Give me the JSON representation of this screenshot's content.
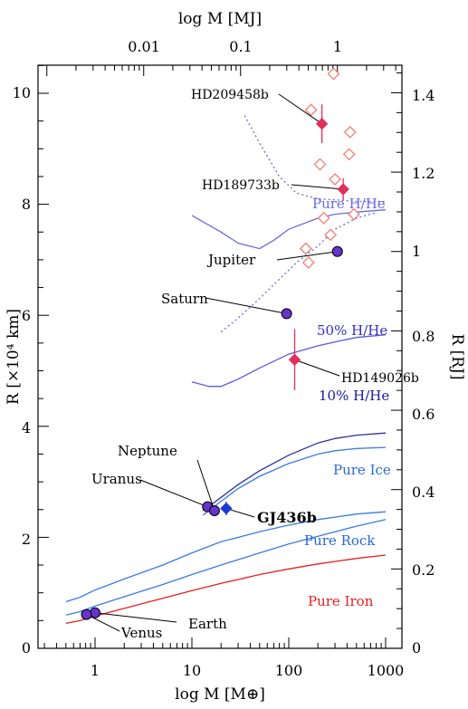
{
  "chart_data": {
    "type": "scatter",
    "title": "",
    "xlabel": "log M [M⊕]",
    "ylabel": "R [×10⁴ km]",
    "x2label": "log M [MJ]",
    "y2label": "R [RJ]",
    "xscale": "log",
    "xlim": [
      0.5,
      1400
    ],
    "ylim": [
      0,
      10.7
    ],
    "xticks": [
      "1",
      "10",
      "100",
      "1000"
    ],
    "yticks": [
      "0",
      "2",
      "4",
      "6",
      "8",
      "10"
    ],
    "x2ticks": [
      "0.01",
      "0.1",
      "1"
    ],
    "y2ticks": [
      "0",
      "0.2",
      "0.4",
      "0.6",
      "0.8",
      "1",
      "1.2",
      "1.4"
    ],
    "grid": false,
    "curves": [
      {
        "name": "Pure H/He",
        "color": "#6a6ae6",
        "style": "solid",
        "x": [
          10,
          20,
          30,
          50,
          70,
          100,
          200,
          300,
          500,
          1000
        ],
        "y": [
          7.8,
          7.5,
          7.3,
          7.2,
          7.35,
          7.55,
          7.75,
          7.82,
          7.86,
          7.9
        ]
      },
      {
        "name": "50% H/He",
        "color": "#5a5ae0",
        "style": "solid",
        "x": [
          10,
          15,
          20,
          30,
          50,
          100,
          200,
          300,
          500,
          1000
        ],
        "y": [
          4.8,
          4.72,
          4.72,
          4.85,
          5.05,
          5.3,
          5.45,
          5.52,
          5.6,
          5.65
        ]
      },
      {
        "name": "10% H/He",
        "color": "#3030a0",
        "style": "solid",
        "x": [
          13,
          20,
          30,
          50,
          100,
          200,
          300,
          500,
          1000
        ],
        "y": [
          2.48,
          2.72,
          2.95,
          3.2,
          3.48,
          3.7,
          3.78,
          3.84,
          3.88
        ]
      },
      {
        "name": "Pure Ice",
        "color": "#3a7ae6",
        "style": "solid",
        "x": [
          13,
          20,
          30,
          50,
          100,
          200,
          300,
          500,
          1000
        ],
        "y": [
          2.4,
          2.65,
          2.88,
          3.1,
          3.33,
          3.5,
          3.56,
          3.6,
          3.62
        ]
      },
      {
        "name": "Pure Rock",
        "color": "#3a7ae6",
        "style": "solid",
        "x": [
          0.5,
          0.7,
          1,
          2,
          5,
          10,
          20,
          50,
          100,
          200,
          500,
          1000
        ],
        "y": [
          0.84,
          0.92,
          1.05,
          1.25,
          1.5,
          1.72,
          1.92,
          2.1,
          2.22,
          2.32,
          2.42,
          2.46
        ]
      },
      {
        "name": "",
        "color": "#3a7ae6",
        "style": "solid",
        "x": [
          0.5,
          0.7,
          1,
          2,
          5,
          10,
          20,
          50,
          100,
          200,
          500,
          1000
        ],
        "y": [
          0.6,
          0.66,
          0.76,
          0.93,
          1.15,
          1.33,
          1.5,
          1.72,
          1.88,
          2.02,
          2.2,
          2.32
        ]
      },
      {
        "name": "Pure Iron",
        "color": "#e62020",
        "style": "solid",
        "x": [
          0.5,
          0.7,
          1,
          2,
          5,
          10,
          20,
          50,
          100,
          200,
          500,
          1000
        ],
        "y": [
          0.45,
          0.5,
          0.58,
          0.72,
          0.9,
          1.04,
          1.17,
          1.33,
          1.43,
          1.52,
          1.62,
          1.68
        ]
      },
      {
        "name": "",
        "color": "#6a6ae6",
        "style": "dotted",
        "x": [
          35,
          50,
          80,
          120,
          200,
          300,
          500,
          800,
          1000
        ],
        "y": [
          9.6,
          9.1,
          8.5,
          8.2,
          8.1,
          8.08,
          8.05,
          8.05,
          8.05
        ]
      },
      {
        "name": "",
        "color": "#6a6ae6",
        "style": "dotted",
        "x": [
          20,
          30,
          50,
          80,
          120,
          200,
          300,
          500,
          800
        ],
        "y": [
          5.7,
          5.95,
          6.3,
          6.65,
          6.95,
          7.25,
          7.55,
          7.75,
          7.85
        ]
      }
    ],
    "planets": [
      {
        "name": "Earth",
        "x": 1,
        "y": 0.64,
        "color": "#6633cc"
      },
      {
        "name": "Venus",
        "x": 0.815,
        "y": 0.61,
        "color": "#6633cc"
      },
      {
        "name": "Uranus",
        "x": 14.5,
        "y": 2.55,
        "color": "#6633cc"
      },
      {
        "name": "Neptune",
        "x": 17.1,
        "y": 2.48,
        "color": "#6633cc"
      },
      {
        "name": "Saturn",
        "x": 95,
        "y": 6.03,
        "color": "#6633cc"
      },
      {
        "name": "Jupiter",
        "x": 318,
        "y": 7.15,
        "color": "#6633cc"
      }
    ],
    "exoplanets": [
      {
        "name": "GJ436b",
        "x": 22.6,
        "y": 2.52,
        "color": "#1a3ad6",
        "yerr": 0.12,
        "bold": true
      },
      {
        "name": "HD209458b",
        "x": 220,
        "y": 9.45,
        "color": "#e0305a",
        "yerr": 0.35
      },
      {
        "name": "HD189733b",
        "x": 365,
        "y": 8.27,
        "color": "#e0305a",
        "yerr": 0.2
      },
      {
        "name": "HD149026b",
        "x": 115,
        "y": 5.2,
        "color": "#e0305a",
        "yerr": 0.55
      }
    ],
    "open_points": {
      "color": "#f08070",
      "x": [
        150,
        160,
        170,
        210,
        230,
        270,
        290,
        300,
        420,
        430,
        470
      ],
      "y": [
        7.2,
        6.95,
        9.7,
        8.72,
        7.75,
        7.45,
        10.35,
        8.45,
        8.9,
        9.3,
        7.82
      ]
    },
    "annotations": [
      {
        "text": "Pure H/He",
        "color": "#6a6ae6"
      },
      {
        "text": "50% H/He",
        "color": "#3030c0"
      },
      {
        "text": "10% H/He",
        "color": "#1a1aa0"
      },
      {
        "text": "Pure Ice",
        "color": "#2a6ad6"
      },
      {
        "text": "Pure Rock",
        "color": "#2a6ad6"
      },
      {
        "text": "Pure Iron",
        "color": "#e62020"
      }
    ]
  }
}
